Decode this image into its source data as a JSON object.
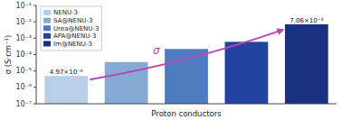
{
  "chart_data": {
    "type": "bar",
    "categories": [
      "NENU-3",
      "SA@NENU-3",
      "Urea@NENU-3",
      "APA@NENU-3",
      "Im@NENU-3"
    ],
    "values": [
      4.97e-06,
      3.5e-05,
      0.00022,
      0.0006,
      0.00706
    ],
    "colors": [
      "#b8cfe8",
      "#85aad4",
      "#4d7dbf",
      "#2244a0",
      "#1a3080"
    ],
    "xlabel": "Proton conductors",
    "ylabel": "σ (S·cm⁻¹)",
    "log": "y",
    "ylim": [
      1e-07,
      0.1
    ],
    "yticks": [
      {
        "value": 1e-07,
        "label": "10⁻⁷"
      },
      {
        "value": 1e-06,
        "label": "10⁻⁶"
      },
      {
        "value": 1e-05,
        "label": "10⁻⁵"
      },
      {
        "value": 0.0001,
        "label": "10⁻⁴"
      },
      {
        "value": 0.001,
        "label": "10⁻³"
      },
      {
        "value": 0.01,
        "label": "10⁻²"
      },
      {
        "value": 0.1,
        "label": "10⁻¹"
      }
    ],
    "grid": false,
    "legend": "upper left",
    "tick_labels": "y",
    "data_labels": true,
    "value_labels": [
      "4.97×10⁻⁶",
      null,
      null,
      null,
      "7.06×10⁻³"
    ],
    "annotations": [
      "σ"
    ]
  }
}
